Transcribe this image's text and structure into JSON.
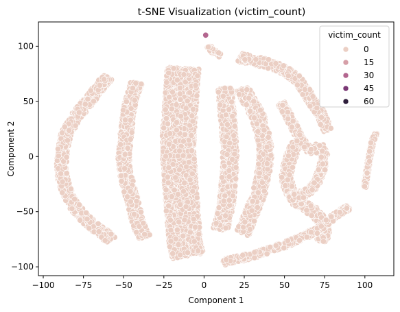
{
  "chart_data": {
    "type": "scatter",
    "title": "t-SNE Visualization (victim_count)",
    "xlabel": "Component 1",
    "ylabel": "Component 2",
    "xlim": [
      -103,
      118
    ],
    "ylim": [
      -108,
      122
    ],
    "x_ticks": [
      {
        "value": -100,
        "label": "−100"
      },
      {
        "value": -75,
        "label": "−75"
      },
      {
        "value": -50,
        "label": "−50"
      },
      {
        "value": -25,
        "label": "−25"
      },
      {
        "value": 0,
        "label": "0"
      },
      {
        "value": 25,
        "label": "25"
      },
      {
        "value": 50,
        "label": "50"
      },
      {
        "value": 75,
        "label": "75"
      },
      {
        "value": 100,
        "label": "100"
      }
    ],
    "y_ticks": [
      {
        "value": -100,
        "label": "−100"
      },
      {
        "value": -50,
        "label": "−50"
      },
      {
        "value": 0,
        "label": "0"
      },
      {
        "value": 50,
        "label": "50"
      },
      {
        "value": 100,
        "label": "100"
      }
    ],
    "grid": false,
    "legend": {
      "title": "victim_count",
      "placement": "top-right",
      "entries": [
        {
          "label": "0",
          "color": "#ebcfc4"
        },
        {
          "label": "15",
          "color": "#d69fa8"
        },
        {
          "label": "30",
          "color": "#b3668f"
        },
        {
          "label": "45",
          "color": "#7a3875"
        },
        {
          "label": "60",
          "color": "#2e1e3b"
        }
      ]
    },
    "point_color": "#ebcfc4",
    "point_edge_color": "#ffffff",
    "highlight_points": [
      {
        "x": 1,
        "y": 110,
        "color": "#b3668f"
      }
    ],
    "clusters": [
      {
        "name": "arc-left",
        "path": [
          [
            -60,
            72
          ],
          [
            -65,
            63
          ],
          [
            -72,
            50
          ],
          [
            -80,
            36
          ],
          [
            -86,
            20
          ],
          [
            -88,
            5
          ],
          [
            -89,
            -10
          ],
          [
            -87,
            -25
          ],
          [
            -83,
            -40
          ],
          [
            -77,
            -52
          ],
          [
            -70,
            -62
          ],
          [
            -62,
            -70
          ],
          [
            -58,
            -76
          ]
        ],
        "width": 7
      },
      {
        "name": "arc-center-left",
        "path": [
          [
            -42,
            67
          ],
          [
            -45,
            55
          ],
          [
            -47,
            42
          ],
          [
            -48,
            28
          ],
          [
            -49,
            14
          ],
          [
            -50,
            0
          ],
          [
            -49,
            -14
          ],
          [
            -47,
            -28
          ],
          [
            -44,
            -42
          ],
          [
            -42,
            -55
          ],
          [
            -40,
            -64
          ],
          [
            -37,
            -73
          ]
        ],
        "width": 8
      },
      {
        "name": "column-center",
        "path": [
          [
            -13,
            80
          ],
          [
            -14,
            60
          ],
          [
            -15,
            40
          ],
          [
            -16,
            20
          ],
          [
            -16,
            0
          ],
          [
            -15,
            -20
          ],
          [
            -14,
            -40
          ],
          [
            -13,
            -60
          ],
          [
            -12,
            -78
          ],
          [
            -10,
            -90
          ]
        ],
        "width": 22
      },
      {
        "name": "column-right",
        "path": [
          [
            13,
            62
          ],
          [
            14,
            45
          ],
          [
            15,
            28
          ],
          [
            16,
            10
          ],
          [
            16,
            -8
          ],
          [
            15,
            -25
          ],
          [
            14,
            -42
          ],
          [
            12,
            -56
          ],
          [
            10,
            -66
          ]
        ],
        "width": 10
      },
      {
        "name": "arc-center-right",
        "path": [
          [
            24,
            62
          ],
          [
            28,
            50
          ],
          [
            33,
            38
          ],
          [
            36,
            24
          ],
          [
            38,
            10
          ],
          [
            38,
            -5
          ],
          [
            36,
            -20
          ],
          [
            34,
            -35
          ],
          [
            30,
            -48
          ],
          [
            27,
            -60
          ],
          [
            24,
            -70
          ]
        ],
        "width": 9
      },
      {
        "name": "arc-top-right",
        "path": [
          [
            22,
            90
          ],
          [
            30,
            87
          ],
          [
            40,
            84
          ],
          [
            50,
            78
          ],
          [
            58,
            70
          ],
          [
            63,
            60
          ],
          [
            67,
            50
          ],
          [
            72,
            40
          ],
          [
            75,
            30
          ],
          [
            77,
            24
          ]
        ],
        "width": 6
      },
      {
        "name": "arc-mid-right",
        "path": [
          [
            57,
            12
          ],
          [
            54,
            0
          ],
          [
            52,
            -10
          ],
          [
            51,
            -20
          ],
          [
            53,
            -30
          ],
          [
            57,
            -40
          ],
          [
            63,
            -45
          ],
          [
            70,
            -52
          ],
          [
            74,
            -60
          ],
          [
            75,
            -70
          ],
          [
            73,
            -77
          ]
        ],
        "width": 7
      },
      {
        "name": "arc-inner-right",
        "path": [
          [
            48,
            48
          ],
          [
            52,
            38
          ],
          [
            56,
            27
          ],
          [
            60,
            15
          ],
          [
            64,
            8
          ],
          [
            68,
            5
          ],
          [
            72,
            10
          ],
          [
            75,
            0
          ],
          [
            73,
            -12
          ],
          [
            70,
            -24
          ],
          [
            65,
            -32
          ],
          [
            58,
            -36
          ],
          [
            52,
            -38
          ]
        ],
        "width": 5
      },
      {
        "name": "diagonal-bottom",
        "path": [
          [
            12,
            -96
          ],
          [
            20,
            -93
          ],
          [
            30,
            -90
          ],
          [
            40,
            -85
          ],
          [
            50,
            -80
          ],
          [
            60,
            -74
          ],
          [
            70,
            -67
          ],
          [
            78,
            -58
          ],
          [
            85,
            -50
          ],
          [
            90,
            -46
          ]
        ],
        "width": 4
      },
      {
        "name": "strand-far-right",
        "path": [
          [
            100,
            -28
          ],
          [
            101,
            -18
          ],
          [
            102,
            -8
          ],
          [
            103,
            0
          ],
          [
            104,
            8
          ],
          [
            105,
            15
          ],
          [
            107,
            21
          ]
        ],
        "width": 2
      },
      {
        "name": "blob-top",
        "path": [
          [
            3,
            100
          ],
          [
            5,
            96
          ],
          [
            8,
            93
          ],
          [
            10,
            92
          ]
        ],
        "width": 3
      }
    ],
    "note_points_per_cluster": "dense"
  }
}
